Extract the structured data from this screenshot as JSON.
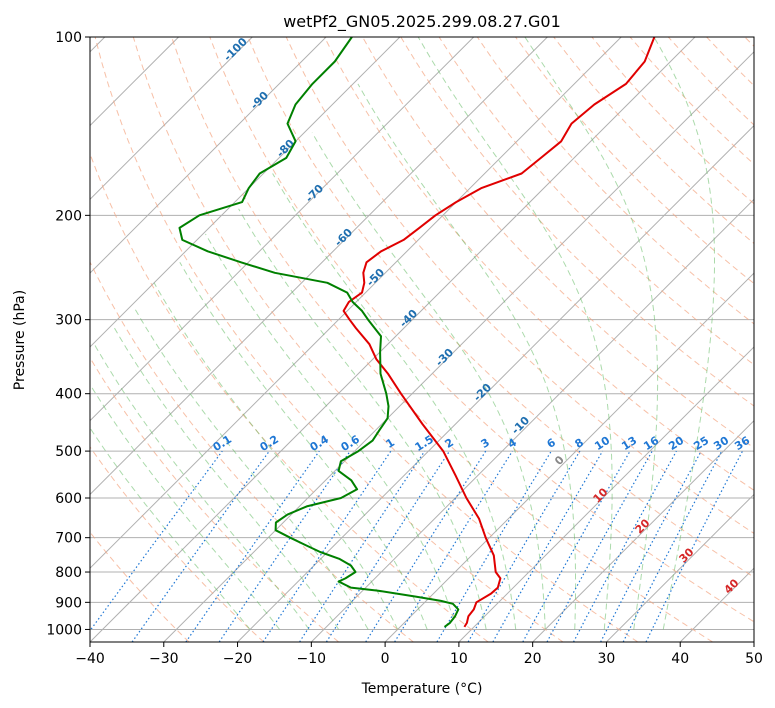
{
  "chart_data": {
    "type": "line",
    "title": "wetPf2_GN05.2025.299.08.27.G01",
    "xlabel": "Temperature (°C)",
    "ylabel": "Pressure (hPa)",
    "xlim": [
      -40,
      50
    ],
    "ylim": [
      1050,
      100
    ],
    "y_scale": "log",
    "x_ticks": [
      -40,
      -30,
      -20,
      -10,
      0,
      10,
      20,
      30,
      40,
      50
    ],
    "y_ticks": [
      1000,
      900,
      800,
      700,
      600,
      500,
      400,
      300,
      200,
      100
    ],
    "grid": true,
    "skew": "Skew-T log-P diagram",
    "series": [
      {
        "color": "#e00000",
        "pressure": [
          990,
          975,
          950,
          925,
          900,
          870,
          850,
          820,
          800,
          750,
          700,
          650,
          600,
          550,
          500,
          450,
          400,
          370,
          350,
          330,
          310,
          300,
          290,
          280,
          270,
          260,
          250,
          240,
          230,
          220,
          210,
          200,
          190,
          180,
          170,
          160,
          150,
          140,
          130,
          120,
          110,
          100
        ],
        "values": [
          8.7,
          8.5,
          7.8,
          7.6,
          7.0,
          7.8,
          7.9,
          7.0,
          5.5,
          3.0,
          -0.5,
          -4.0,
          -8.5,
          -13.0,
          -18.0,
          -24.5,
          -31.5,
          -36.0,
          -39.5,
          -42.5,
          -46.5,
          -48.5,
          -50.5,
          -51.0,
          -50.5,
          -51.5,
          -53.0,
          -54.0,
          -53.5,
          -52.0,
          -51.5,
          -51.0,
          -50.0,
          -48.5,
          -45.0,
          -44.5,
          -44.0,
          -45.0,
          -44.5,
          -43.0,
          -43.5,
          -45.5
        ]
      },
      {
        "color": "#008000",
        "pressure": [
          990,
          975,
          950,
          925,
          905,
          895,
          880,
          860,
          850,
          830,
          820,
          800,
          780,
          760,
          740,
          720,
          700,
          680,
          660,
          640,
          620,
          600,
          580,
          560,
          540,
          520,
          500,
          480,
          460,
          440,
          420,
          400,
          370,
          340,
          320,
          300,
          290,
          280,
          270,
          260,
          250,
          240,
          230,
          220,
          210,
          200,
          190,
          180,
          170,
          160,
          150,
          140,
          130,
          120,
          110,
          100
        ],
        "values": [
          6.0,
          6.2,
          6.0,
          5.5,
          4.0,
          2.0,
          -2.0,
          -8.0,
          -12.0,
          -14.5,
          -14.0,
          -13.5,
          -15.0,
          -17.5,
          -21.0,
          -24.0,
          -27.0,
          -30.0,
          -31.0,
          -30.5,
          -29.0,
          -25.5,
          -24.5,
          -26.5,
          -29.5,
          -30.5,
          -29.5,
          -29.0,
          -29.5,
          -30.0,
          -31.5,
          -33.5,
          -37.0,
          -40.0,
          -42.0,
          -46.0,
          -48.0,
          -50.5,
          -52.5,
          -56.5,
          -65.0,
          -71.0,
          -77.0,
          -82.0,
          -84.0,
          -83.0,
          -79.0,
          -80.0,
          -80.5,
          -79.0,
          -80.0,
          -83.5,
          -85.0,
          -85.5,
          -85.5,
          -86.5
        ]
      }
    ],
    "background_lines": {
      "dry_adiabats_label": "",
      "isotherm_labels_blue": [
        "-100",
        "-90",
        "-80",
        "-70",
        "-60",
        "-50",
        "-40",
        "-30",
        "-20",
        "-10"
      ],
      "mixing_ratio_labels": [
        "0.1",
        "0.2",
        "0.4",
        "0.6",
        "1",
        "1.5",
        "2",
        "3",
        "4",
        "6",
        "8",
        "10",
        "13",
        "16",
        "20",
        "25",
        "30",
        "36"
      ],
      "moist_adiabat_labels_red": [
        "0",
        "10",
        "20",
        "30",
        "40"
      ]
    },
    "colors": {
      "temperature": "#e00000",
      "dewpoint": "#008000",
      "isotherm": "#b0b0b0",
      "dry_adiabat": "#f4a582",
      "moist_adiabat": "#66bb66",
      "mixing_ratio": "#1f77d4",
      "isotherm_label": "#1f6fb0",
      "moist_label": "#d62728"
    }
  }
}
